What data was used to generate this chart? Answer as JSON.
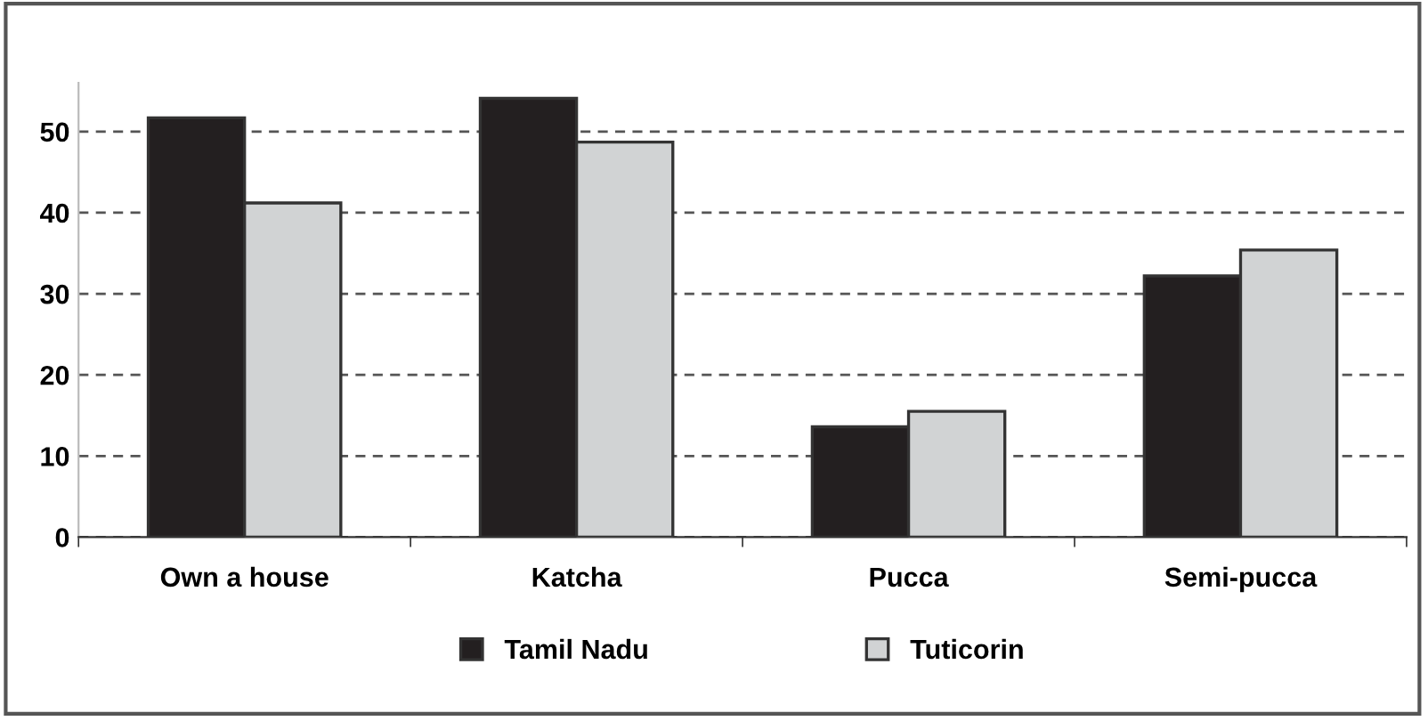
{
  "chart_data": {
    "type": "bar",
    "categories": [
      "Own a house",
      "Katcha",
      "Pucca",
      "Semi-pucca"
    ],
    "series": [
      {
        "name": "Tamil Nadu",
        "color": "#231f20",
        "values": [
          51.7,
          54.1,
          13.6,
          32.2
        ]
      },
      {
        "name": "Tuticorin",
        "color": "#d1d3d4",
        "values": [
          41.2,
          48.7,
          15.5,
          35.4
        ]
      }
    ],
    "ylim": [
      0,
      56
    ],
    "yticks": [
      0,
      10,
      20,
      30,
      40,
      50
    ],
    "grid": "y",
    "legend": "bottom"
  }
}
